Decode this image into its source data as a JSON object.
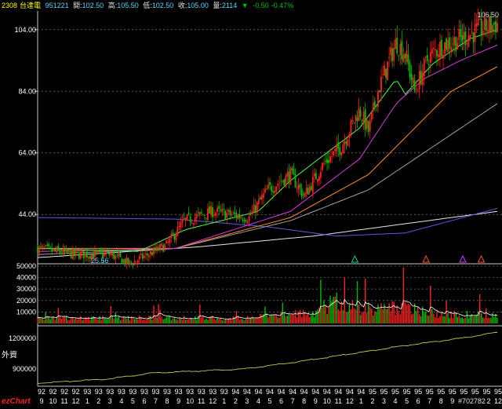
{
  "header": {
    "stock_code": "2308",
    "stock_name": "台達電",
    "date": "951221",
    "open_label": "開:",
    "open": "102.50",
    "high_label": "高:",
    "high": "105.50",
    "low_label": "低:",
    "low": "102.50",
    "close_label": "收:",
    "close": "105.00",
    "volume_label": "量:",
    "volume": "2114",
    "change_icon": "down-triangle-icon",
    "change": "-0.50",
    "change_pct": "-0.47%"
  },
  "colors": {
    "background": "#000000",
    "header_code": "#ffff00",
    "header_value": "#55d7ff",
    "down": "#00c000",
    "up": "#ff2020",
    "grid": "#777777",
    "axis_text": "#ffffff",
    "ma_white": "#e6e6e6",
    "ma_blue": "#5a5ae6",
    "ma_grey": "#a0a0a0",
    "ma_orange": "#ff8c28",
    "ma_magenta": "#dc3cdc",
    "ma_green": "#50ff50",
    "ma_yellow": "#ffff50",
    "foreign_line": "#c8c850",
    "ezchart": "#ff2020"
  },
  "watermark": {
    "brand": "ezChart",
    "id": "#702782"
  },
  "chart_data": [
    {
      "type": "candlestick",
      "panel": "price",
      "y_ticks": [
        44.0,
        64.0,
        84.0,
        104.0
      ],
      "ylim": [
        28,
        107
      ],
      "max_label": "106.50",
      "min_label": "25.56",
      "grid": "dashed",
      "moving_averages": [
        {
          "color": "white",
          "x": [
            0,
            0.35,
            0.6,
            0.8,
            1.0
          ],
          "y": [
            30.0,
            33.5,
            37.0,
            41.0,
            45.0
          ]
        },
        {
          "color": "blue",
          "x": [
            0,
            0.3,
            0.5,
            0.65,
            0.8,
            1.0
          ],
          "y": [
            43.0,
            42.5,
            40.0,
            37.0,
            38.0,
            46.0
          ]
        },
        {
          "color": "grey",
          "x": [
            0,
            0.3,
            0.55,
            0.72,
            0.86,
            1.0
          ],
          "y": [
            31.0,
            33.0,
            42.0,
            52.0,
            66.0,
            80.0
          ]
        },
        {
          "color": "orange",
          "x": [
            0,
            0.3,
            0.55,
            0.72,
            0.82,
            0.9,
            1.0
          ],
          "y": [
            33.0,
            33.0,
            43.0,
            57.0,
            72.0,
            84.0,
            92.0
          ]
        },
        {
          "color": "magenta",
          "x": [
            0,
            0.3,
            0.55,
            0.7,
            0.78,
            0.84,
            0.92,
            1.0
          ],
          "y": [
            32.0,
            33.0,
            45.0,
            62.0,
            80.0,
            88.0,
            94.0,
            99.0
          ]
        },
        {
          "color": "green",
          "x": [
            0,
            0.22,
            0.32,
            0.48,
            0.55,
            0.62,
            0.7,
            0.78,
            0.8,
            0.86,
            0.94,
            1.0
          ],
          "y": [
            33.0,
            32.0,
            39.0,
            45.0,
            55.0,
            63.0,
            72.0,
            88.0,
            83.0,
            93.0,
            101.0,
            104.0
          ]
        }
      ],
      "candles_path": {
        "x": [
          0,
          0.08,
          0.16,
          0.2,
          0.28,
          0.32,
          0.38,
          0.46,
          0.5,
          0.55,
          0.58,
          0.62,
          0.66,
          0.7,
          0.72,
          0.74,
          0.76,
          0.78,
          0.8,
          0.82,
          0.85,
          0.88,
          0.92,
          0.96,
          1.0
        ],
        "y": [
          33.0,
          31.0,
          31.0,
          28.0,
          34.0,
          42.0,
          45.0,
          43.0,
          52.0,
          57.0,
          50.0,
          60.0,
          66.0,
          78.0,
          71.0,
          84.0,
          92.0,
          100.0,
          96.0,
          84.0,
          95.0,
          99.0,
          101.0,
          104.0,
          106.0
        ]
      }
    },
    {
      "type": "bar",
      "panel": "volume",
      "y_ticks": [
        10000,
        20000,
        30000,
        40000,
        50000
      ],
      "ylim": [
        0,
        52000
      ],
      "average_line": true,
      "profile": {
        "x": [
          0,
          0.25,
          0.45,
          0.6,
          0.65,
          0.7,
          0.8,
          0.88,
          1.0
        ],
        "y": [
          5000,
          5000,
          5000,
          10000,
          20000,
          13000,
          15000,
          8000,
          8000
        ]
      }
    },
    {
      "type": "line",
      "panel": "foreign_investors",
      "label": "外資",
      "y_ticks": [
        900000,
        1200000
      ],
      "ylim": [
        730000,
        1300000
      ],
      "series": [
        {
          "x": [
            0,
            0.15,
            0.25,
            0.45,
            0.55,
            0.7,
            0.8,
            0.92,
            1.0
          ],
          "y": [
            760000,
            800000,
            860000,
            900000,
            960000,
            1060000,
            1130000,
            1200000,
            1260000
          ]
        }
      ]
    }
  ],
  "x_axis": {
    "year_row": [
      "92",
      "92",
      "92",
      "92",
      "93",
      "93",
      "93",
      "93",
      "93",
      "93",
      "93",
      "93",
      "93",
      "93",
      "93",
      "93",
      "93",
      "94",
      "94",
      "94",
      "94",
      "94",
      "94",
      "94",
      "94",
      "94",
      "94",
      "94",
      "94",
      "95",
      "95",
      "95",
      "95",
      "95",
      "95",
      "95",
      "95",
      "95",
      "95",
      "95",
      "95"
    ],
    "month_row": [
      "9",
      "10",
      "11",
      "12",
      "1",
      "2",
      "3",
      "4",
      "5",
      "6",
      "7",
      "8",
      "9",
      "10",
      "11",
      "12",
      "1",
      "2",
      "3",
      "4",
      "5",
      "6",
      "7",
      "8",
      "9",
      "10",
      "11",
      "12",
      "1",
      "2",
      "3",
      "4",
      "5",
      "6",
      "7",
      "8",
      "9",
      "10",
      "11",
      "12",
      "12"
    ]
  }
}
